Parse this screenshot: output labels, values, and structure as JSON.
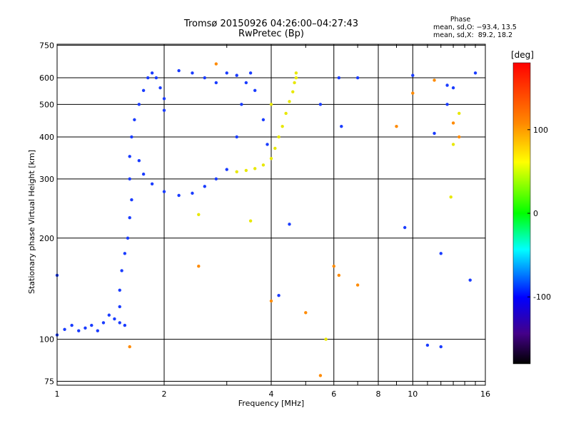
{
  "chart_data": {
    "type": "scatter",
    "title": "Tromsø 20150926 04:26:00–04:27:43",
    "subtitle": "RwPretec (Bp)",
    "xlabel": "Frequency [MHz]",
    "ylabel": "Stationary phase Virtual Height [km]",
    "xscale": "log",
    "yscale": "log",
    "xlim": [
      1,
      16
    ],
    "ylim": [
      73,
      755
    ],
    "x_ticks": [
      1,
      2,
      4,
      6,
      8,
      10,
      16
    ],
    "x_tick_labels": [
      "1",
      "2",
      "4",
      "6",
      "8",
      "10",
      "16"
    ],
    "x_minor_ticks": [
      3,
      5,
      7,
      9,
      11,
      12,
      13,
      14,
      15
    ],
    "y_ticks": [
      75,
      100,
      200,
      300,
      400,
      500,
      600,
      750
    ],
    "y_tick_labels": [
      "75",
      "100",
      "200",
      "300",
      "400",
      "500",
      "600",
      "750"
    ],
    "grid": true,
    "phase_stats": {
      "heading": "Phase",
      "o_mode": "mean, sd,O: −93.4, 13.5",
      "x_mode": "mean, sd,X:  89.2, 18.2"
    },
    "colorbar": {
      "unit": "[deg]",
      "range": [
        -180,
        180
      ],
      "tick_values": [
        100,
        0,
        -100
      ],
      "tick_labels": [
        "100",
        "0",
        "-100"
      ]
    },
    "series": [
      {
        "values": [
          {
            "x": 1.0,
            "y": 103
          },
          {
            "x": 1.05,
            "y": 107
          },
          {
            "x": 1.1,
            "y": 110
          },
          {
            "x": 1.15,
            "y": 106
          },
          {
            "x": 1.2,
            "y": 108
          },
          {
            "x": 1.25,
            "y": 110
          },
          {
            "x": 1.3,
            "y": 106
          },
          {
            "x": 1.35,
            "y": 112
          },
          {
            "x": 1.4,
            "y": 118
          },
          {
            "x": 1.45,
            "y": 115
          },
          {
            "x": 1.5,
            "y": 112
          },
          {
            "x": 1.55,
            "y": 110
          },
          {
            "x": 1.5,
            "y": 125
          },
          {
            "x": 1.5,
            "y": 140
          },
          {
            "x": 1.52,
            "y": 160
          },
          {
            "x": 1.55,
            "y": 180
          },
          {
            "x": 1.58,
            "y": 200
          },
          {
            "x": 1.6,
            "y": 230
          },
          {
            "x": 1.62,
            "y": 260
          },
          {
            "x": 1.6,
            "y": 300
          },
          {
            "x": 1.6,
            "y": 350
          },
          {
            "x": 1.62,
            "y": 400
          },
          {
            "x": 1.65,
            "y": 450
          },
          {
            "x": 1.7,
            "y": 500
          },
          {
            "x": 1.75,
            "y": 550
          },
          {
            "x": 1.8,
            "y": 600
          },
          {
            "x": 1.85,
            "y": 620
          },
          {
            "x": 1.9,
            "y": 600
          },
          {
            "x": 1.95,
            "y": 560
          },
          {
            "x": 2.0,
            "y": 520
          },
          {
            "x": 2.0,
            "y": 480
          },
          {
            "x": 2.2,
            "y": 630
          },
          {
            "x": 2.4,
            "y": 620
          },
          {
            "x": 2.6,
            "y": 600
          },
          {
            "x": 2.8,
            "y": 580
          },
          {
            "x": 1.7,
            "y": 340
          },
          {
            "x": 1.75,
            "y": 310
          },
          {
            "x": 1.85,
            "y": 290
          },
          {
            "x": 2.0,
            "y": 275
          },
          {
            "x": 2.2,
            "y": 268
          },
          {
            "x": 2.4,
            "y": 272
          },
          {
            "x": 2.6,
            "y": 285
          },
          {
            "x": 2.8,
            "y": 300
          },
          {
            "x": 3.0,
            "y": 320
          },
          {
            "x": 3.2,
            "y": 400
          },
          {
            "x": 3.3,
            "y": 500
          },
          {
            "x": 3.4,
            "y": 580
          },
          {
            "x": 3.5,
            "y": 620
          },
          {
            "x": 3.6,
            "y": 550
          },
          {
            "x": 3.8,
            "y": 450
          },
          {
            "x": 3.9,
            "y": 380
          },
          {
            "x": 3.0,
            "y": 620
          },
          {
            "x": 3.2,
            "y": 610
          },
          {
            "x": 1.0,
            "y": 155
          },
          {
            "x": 6.2,
            "y": 600
          },
          {
            "x": 7.0,
            "y": 600
          },
          {
            "x": 12.5,
            "y": 570
          },
          {
            "x": 13.0,
            "y": 560
          },
          {
            "x": 11.5,
            "y": 410
          },
          {
            "x": 5.5,
            "y": 500
          },
          {
            "x": 6.3,
            "y": 430
          },
          {
            "x": 9.5,
            "y": 215
          },
          {
            "x": 12.0,
            "y": 180
          },
          {
            "x": 11.0,
            "y": 96
          },
          {
            "x": 12.0,
            "y": 95
          },
          {
            "x": 4.2,
            "y": 135
          },
          {
            "x": 4.5,
            "y": 220
          },
          {
            "x": 14.5,
            "y": 150
          },
          {
            "x": 15.0,
            "y": 620
          },
          {
            "x": 12.5,
            "y": 500
          },
          {
            "x": 10.0,
            "y": 610
          }
        ]
      },
      {
        "values": [
          {
            "x": 3.2,
            "y": 315
          },
          {
            "x": 3.4,
            "y": 318
          },
          {
            "x": 3.6,
            "y": 322
          },
          {
            "x": 3.8,
            "y": 330
          },
          {
            "x": 4.0,
            "y": 345
          },
          {
            "x": 4.1,
            "y": 370
          },
          {
            "x": 4.2,
            "y": 400
          },
          {
            "x": 4.3,
            "y": 430
          },
          {
            "x": 4.4,
            "y": 470
          },
          {
            "x": 4.5,
            "y": 510
          },
          {
            "x": 4.6,
            "y": 545
          },
          {
            "x": 4.65,
            "y": 580
          },
          {
            "x": 4.7,
            "y": 600
          },
          {
            "x": 4.7,
            "y": 620
          },
          {
            "x": 4.0,
            "y": 500
          },
          {
            "x": 3.5,
            "y": 225
          },
          {
            "x": 5.7,
            "y": 100
          },
          {
            "x": 13.0,
            "y": 380
          },
          {
            "x": 13.5,
            "y": 470
          },
          {
            "x": 12.8,
            "y": 265
          },
          {
            "x": 2.5,
            "y": 235
          }
        ]
      },
      {
        "values": [
          {
            "x": 2.8,
            "y": 660
          },
          {
            "x": 6.0,
            "y": 165
          },
          {
            "x": 6.2,
            "y": 155
          },
          {
            "x": 5.0,
            "y": 120
          },
          {
            "x": 1.6,
            "y": 95
          },
          {
            "x": 9.0,
            "y": 430
          },
          {
            "x": 10.0,
            "y": 540
          },
          {
            "x": 11.5,
            "y": 590
          },
          {
            "x": 13.0,
            "y": 440
          },
          {
            "x": 13.5,
            "y": 400
          },
          {
            "x": 4.0,
            "y": 130
          },
          {
            "x": 7.0,
            "y": 145
          },
          {
            "x": 5.5,
            "y": 78
          },
          {
            "x": 2.5,
            "y": 165
          }
        ]
      }
    ]
  }
}
